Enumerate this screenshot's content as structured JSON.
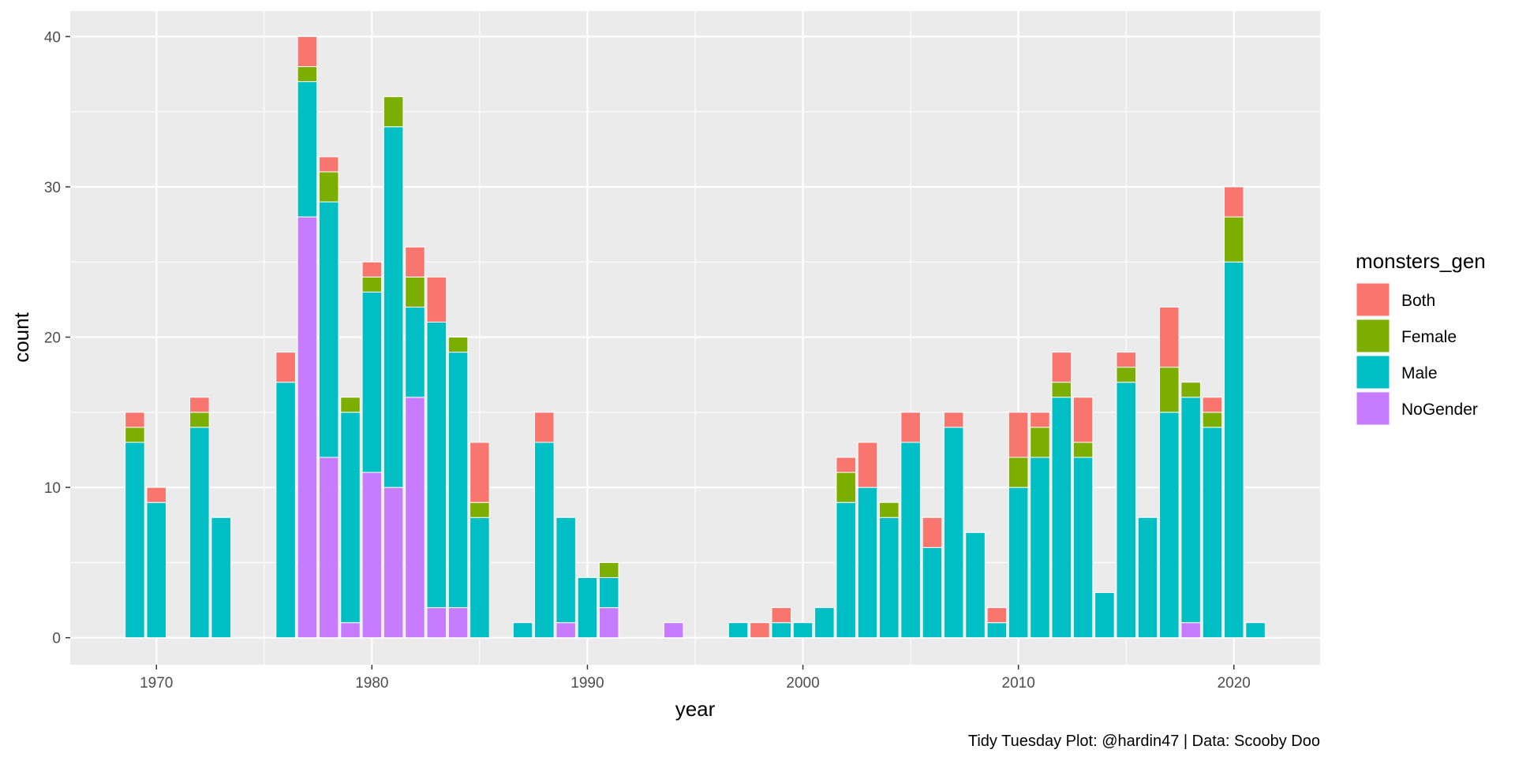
{
  "chart_data": {
    "type": "bar",
    "stacked": true,
    "xlabel": "year",
    "ylabel": "count",
    "caption": "Tidy Tuesday Plot: @hardin47 | Data: Scooby Doo",
    "legend_title": "monsters_gen",
    "legend_position": "right",
    "grid": true,
    "xlim": [
      1966,
      2024
    ],
    "ylim": [
      -1.8,
      41.7
    ],
    "x_ticks": [
      1970,
      1980,
      1990,
      2000,
      2010,
      2020
    ],
    "y_ticks": [
      0,
      10,
      20,
      30,
      40
    ],
    "stack_order": [
      "NoGender",
      "Male",
      "Female",
      "Both"
    ],
    "series": [
      {
        "name": "Both",
        "color": "#F8766D",
        "points": [
          {
            "x": 1969,
            "y": 1
          },
          {
            "x": 1970,
            "y": 1
          },
          {
            "x": 1972,
            "y": 1
          },
          {
            "x": 1976,
            "y": 2
          },
          {
            "x": 1977,
            "y": 2
          },
          {
            "x": 1978,
            "y": 1
          },
          {
            "x": 1980,
            "y": 1
          },
          {
            "x": 1982,
            "y": 2
          },
          {
            "x": 1983,
            "y": 3
          },
          {
            "x": 1985,
            "y": 4
          },
          {
            "x": 1988,
            "y": 2
          },
          {
            "x": 1998,
            "y": 1
          },
          {
            "x": 1999,
            "y": 1
          },
          {
            "x": 2002,
            "y": 1
          },
          {
            "x": 2003,
            "y": 3
          },
          {
            "x": 2005,
            "y": 2
          },
          {
            "x": 2006,
            "y": 2
          },
          {
            "x": 2007,
            "y": 1
          },
          {
            "x": 2009,
            "y": 1
          },
          {
            "x": 2010,
            "y": 3
          },
          {
            "x": 2011,
            "y": 1
          },
          {
            "x": 2012,
            "y": 2
          },
          {
            "x": 2013,
            "y": 3
          },
          {
            "x": 2015,
            "y": 1
          },
          {
            "x": 2017,
            "y": 4
          },
          {
            "x": 2019,
            "y": 1
          },
          {
            "x": 2020,
            "y": 2
          }
        ]
      },
      {
        "name": "Female",
        "color": "#7CAE00",
        "points": [
          {
            "x": 1969,
            "y": 1
          },
          {
            "x": 1972,
            "y": 1
          },
          {
            "x": 1977,
            "y": 1
          },
          {
            "x": 1978,
            "y": 2
          },
          {
            "x": 1979,
            "y": 1
          },
          {
            "x": 1980,
            "y": 1
          },
          {
            "x": 1981,
            "y": 2
          },
          {
            "x": 1982,
            "y": 2
          },
          {
            "x": 1984,
            "y": 1
          },
          {
            "x": 1985,
            "y": 1
          },
          {
            "x": 1991,
            "y": 1
          },
          {
            "x": 2002,
            "y": 2
          },
          {
            "x": 2004,
            "y": 1
          },
          {
            "x": 2010,
            "y": 2
          },
          {
            "x": 2011,
            "y": 2
          },
          {
            "x": 2012,
            "y": 1
          },
          {
            "x": 2013,
            "y": 1
          },
          {
            "x": 2015,
            "y": 1
          },
          {
            "x": 2017,
            "y": 3
          },
          {
            "x": 2018,
            "y": 1
          },
          {
            "x": 2019,
            "y": 1
          },
          {
            "x": 2020,
            "y": 3
          }
        ]
      },
      {
        "name": "Male",
        "color": "#00BFC4",
        "points": [
          {
            "x": 1969,
            "y": 13
          },
          {
            "x": 1970,
            "y": 9
          },
          {
            "x": 1972,
            "y": 14
          },
          {
            "x": 1973,
            "y": 8
          },
          {
            "x": 1976,
            "y": 17
          },
          {
            "x": 1977,
            "y": 9
          },
          {
            "x": 1978,
            "y": 17
          },
          {
            "x": 1979,
            "y": 14
          },
          {
            "x": 1980,
            "y": 12
          },
          {
            "x": 1981,
            "y": 24
          },
          {
            "x": 1982,
            "y": 6
          },
          {
            "x": 1983,
            "y": 19
          },
          {
            "x": 1984,
            "y": 17
          },
          {
            "x": 1985,
            "y": 8
          },
          {
            "x": 1987,
            "y": 1
          },
          {
            "x": 1988,
            "y": 13
          },
          {
            "x": 1989,
            "y": 7
          },
          {
            "x": 1990,
            "y": 4
          },
          {
            "x": 1991,
            "y": 2
          },
          {
            "x": 1997,
            "y": 1
          },
          {
            "x": 1999,
            "y": 1
          },
          {
            "x": 2000,
            "y": 1
          },
          {
            "x": 2001,
            "y": 2
          },
          {
            "x": 2002,
            "y": 9
          },
          {
            "x": 2003,
            "y": 10
          },
          {
            "x": 2004,
            "y": 8
          },
          {
            "x": 2005,
            "y": 13
          },
          {
            "x": 2006,
            "y": 6
          },
          {
            "x": 2007,
            "y": 14
          },
          {
            "x": 2008,
            "y": 7
          },
          {
            "x": 2009,
            "y": 1
          },
          {
            "x": 2010,
            "y": 10
          },
          {
            "x": 2011,
            "y": 12
          },
          {
            "x": 2012,
            "y": 16
          },
          {
            "x": 2013,
            "y": 12
          },
          {
            "x": 2014,
            "y": 3
          },
          {
            "x": 2015,
            "y": 17
          },
          {
            "x": 2016,
            "y": 8
          },
          {
            "x": 2017,
            "y": 15
          },
          {
            "x": 2018,
            "y": 15
          },
          {
            "x": 2019,
            "y": 14
          },
          {
            "x": 2020,
            "y": 25
          },
          {
            "x": 2021,
            "y": 1
          }
        ]
      },
      {
        "name": "NoGender",
        "color": "#C77CFF",
        "points": [
          {
            "x": 1977,
            "y": 28
          },
          {
            "x": 1978,
            "y": 12
          },
          {
            "x": 1979,
            "y": 1
          },
          {
            "x": 1980,
            "y": 11
          },
          {
            "x": 1981,
            "y": 10
          },
          {
            "x": 1982,
            "y": 16
          },
          {
            "x": 1983,
            "y": 2
          },
          {
            "x": 1984,
            "y": 2
          },
          {
            "x": 1989,
            "y": 1
          },
          {
            "x": 1991,
            "y": 2
          },
          {
            "x": 1994,
            "y": 1
          },
          {
            "x": 2018,
            "y": 1
          }
        ]
      }
    ]
  }
}
